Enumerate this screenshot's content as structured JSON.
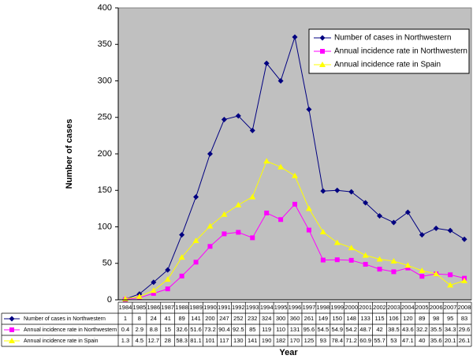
{
  "chart_data": {
    "type": "line",
    "xlabel": "Year",
    "ylabel": "Number  of  cases",
    "categories": [
      "1984",
      "1985",
      "1986",
      "1987",
      "1988",
      "1989",
      "1990",
      "1991",
      "1992",
      "1993",
      "1994",
      "1995",
      "1996",
      "1997",
      "1998",
      "1999",
      "2000",
      "2001",
      "2002",
      "2003",
      "2004",
      "2005",
      "2006",
      "2007",
      "2008"
    ],
    "series": [
      {
        "name": "Number of cases in Northwestern",
        "color": "#000080",
        "marker": "diamond",
        "values": [
          1,
          8,
          24,
          41,
          89,
          141,
          200,
          247,
          252,
          232,
          324,
          300,
          360,
          261,
          149,
          150,
          148,
          133,
          115,
          106,
          120,
          89,
          98,
          95,
          83
        ]
      },
      {
        "name": "Annual incidence rate in Northwestern",
        "color": "#ff00ff",
        "marker": "square",
        "values": [
          0.4,
          2.9,
          8.8,
          15,
          32.6,
          51.6,
          73.2,
          90.4,
          92.5,
          85,
          119,
          110,
          131,
          95.6,
          54.5,
          54.9,
          54.2,
          48.7,
          42,
          38.5,
          43.6,
          32.2,
          35.5,
          34.3,
          29.6
        ]
      },
      {
        "name": "Annual incidence rate in Spain",
        "color": "#ffff00",
        "marker": "triangle",
        "values": [
          1.3,
          4.5,
          12.7,
          28,
          58.3,
          81.1,
          101,
          117,
          130,
          141,
          190,
          182,
          170,
          125,
          93,
          78.4,
          71.2,
          60.9,
          55.7,
          53,
          47.1,
          40,
          35.6,
          20.1,
          26.1
        ]
      }
    ],
    "ylim": [
      0,
      400
    ],
    "yticks": [
      0,
      50,
      100,
      150,
      200,
      250,
      300,
      350,
      400
    ],
    "legend": "upper right"
  }
}
